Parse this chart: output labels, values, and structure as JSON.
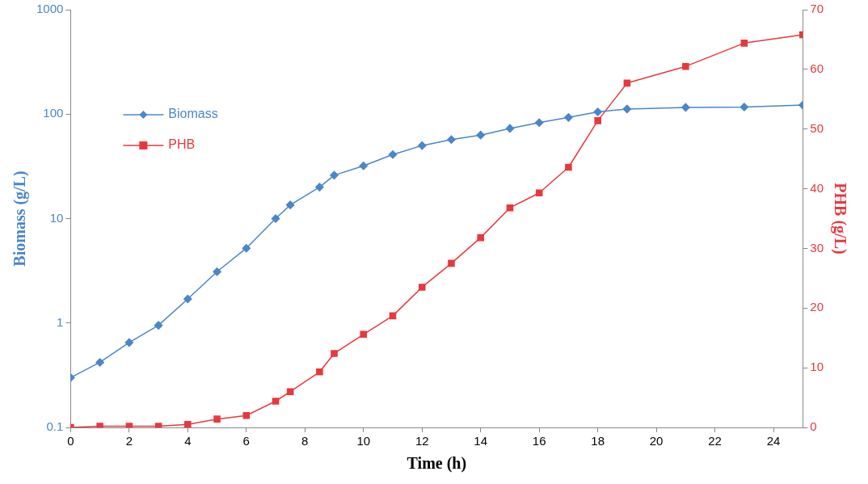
{
  "chart_data": {
    "type": "line",
    "xlabel": "Time (h)",
    "ylabel": "Biomass (g/L)",
    "y2label": "PHB (g/L)",
    "x": [
      0,
      1,
      2,
      3,
      4,
      5,
      6,
      7,
      7.5,
      8.5,
      9,
      10,
      11,
      12,
      13,
      14,
      15,
      16,
      17,
      18,
      19,
      21,
      23,
      25
    ],
    "series": [
      {
        "name": "Biomass",
        "color": "#4a86c8",
        "marker": "diamond",
        "values": [
          0.3,
          0.42,
          0.65,
          0.95,
          1.7,
          3.1,
          5.2,
          10,
          13.5,
          20,
          26,
          32,
          41,
          50,
          57,
          63,
          73,
          83,
          93,
          105,
          112,
          116,
          117,
          122
        ]
      },
      {
        "name": "PHB",
        "color": "#e8383d",
        "marker": "square",
        "axis": "y2",
        "values": [
          0,
          0.2,
          0.2,
          0.2,
          0.5,
          1.4,
          2,
          4.4,
          6,
          9.3,
          12.4,
          15.6,
          18.7,
          23.5,
          27.5,
          31.8,
          36.8,
          39.3,
          43.6,
          51.4,
          57.7,
          60.5,
          64.4,
          65.8
        ]
      }
    ],
    "xlim": [
      0,
      25
    ],
    "xticks": [
      0,
      2,
      4,
      6,
      8,
      10,
      12,
      14,
      16,
      18,
      20,
      22,
      24
    ],
    "log": "y",
    "ylim": [
      0.1,
      1000
    ],
    "yticks": [
      0.1,
      1,
      10,
      100,
      1000
    ],
    "y2lim": [
      0,
      70
    ],
    "y2ticks": [
      0,
      10,
      20,
      30,
      40,
      50,
      60,
      70
    ],
    "grid": false,
    "legend": "top left",
    "line_style": "solid"
  }
}
